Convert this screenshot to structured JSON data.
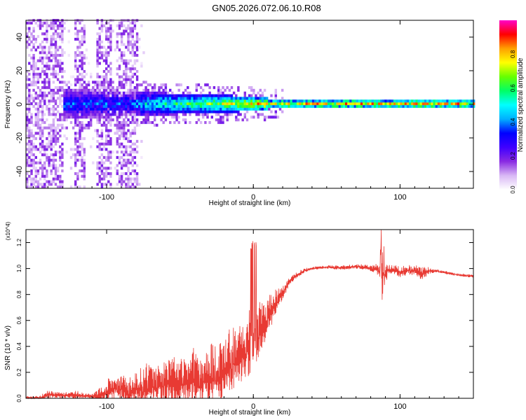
{
  "title": "GN05.2026.072.06.10.R08",
  "colors": {
    "snr_line": "#e83a33",
    "frame": "#000000"
  },
  "chart_data": [
    {
      "type": "heatmap",
      "title": "GN05.2026.072.06.10.R08",
      "xlabel": "Height of straight line (km)",
      "ylabel": "Frequency (Hz)",
      "xlim": [
        -155,
        150
      ],
      "ylim": [
        -50,
        50
      ],
      "xticks": [
        -100,
        0,
        100
      ],
      "xtick_labels": [
        "-100",
        "0",
        "100"
      ],
      "yticks": [
        -40,
        -20,
        0,
        20,
        40
      ],
      "ytick_labels": [
        "-40",
        "-20",
        "0",
        "20",
        "40"
      ],
      "colorbar": {
        "label": "Normalized spectral amplitude",
        "range": [
          0,
          1
        ],
        "ticks": [
          0.0,
          0.2,
          0.4,
          0.6,
          0.8
        ],
        "tick_labels": [
          "0.0",
          "0.2",
          "0.4",
          "0.6",
          "0.8"
        ],
        "colormap": [
          "#ffffff",
          "#d9b8f5",
          "#8a2be2",
          "#3f00ff",
          "#0000ff",
          "#00b0ff",
          "#00ffff",
          "#00ff66",
          "#66ff00",
          "#ffff00",
          "#ffa000",
          "#ff0000",
          "#ff00c8"
        ]
      },
      "features": {
        "broadband_columns_km": [
          [
            -155,
            -130
          ],
          [
            -122,
            -115
          ],
          [
            -108,
            -98
          ],
          [
            -94,
            -80
          ]
        ],
        "central_band": {
          "x_range": [
            -130,
            150
          ],
          "center_hz": 0,
          "peak_region_km": [
            0,
            150
          ]
        }
      }
    },
    {
      "type": "line",
      "xlabel": "Height of straight line (km)",
      "ylabel": "SNR (10 * v/v)",
      "scale_label": "(x10^4)",
      "xlim": [
        -155,
        150
      ],
      "ylim": [
        0,
        1.3
      ],
      "xticks": [
        -100,
        0,
        100
      ],
      "xtick_labels": [
        "-100",
        "0",
        "100"
      ],
      "yticks": [
        0.0,
        0.2,
        0.4,
        0.6,
        0.8,
        1.0,
        1.2
      ],
      "ytick_labels": [
        "0.0",
        "0.2",
        "0.4",
        "0.6",
        "0.8",
        "1.0",
        "1.2"
      ],
      "series": [
        {
          "x": [
            -155,
            -145,
            -140,
            -130,
            -125,
            -120,
            -115,
            -110,
            -105,
            -100,
            -95,
            -90,
            -85,
            -80,
            -75,
            -70,
            -65,
            -60,
            -55,
            -50,
            -45,
            -40,
            -35,
            -30,
            -25,
            -20,
            -15,
            -10,
            -5,
            0,
            5,
            10,
            15,
            20,
            25,
            30,
            35,
            40,
            50,
            60,
            70,
            80,
            85,
            88,
            90,
            92,
            95,
            100,
            105,
            110,
            115,
            120,
            125,
            130,
            140,
            150
          ],
          "envelope": [
            0.01,
            0.02,
            0.05,
            0.04,
            0.04,
            0.06,
            0.03,
            0.03,
            0.06,
            0.12,
            0.16,
            0.18,
            0.16,
            0.18,
            0.22,
            0.2,
            0.26,
            0.24,
            0.3,
            0.26,
            0.28,
            0.34,
            0.28,
            0.38,
            0.34,
            0.42,
            0.48,
            0.52,
            0.56,
            0.62,
            0.7,
            0.74,
            0.8,
            0.86,
            0.93,
            0.97,
            1.0,
            1.01,
            1.02,
            1.02,
            1.03,
            1.02,
            1.03,
            1.02,
            1.02,
            1.02,
            1.02,
            1.01,
            1.02,
            1.01,
            1.01,
            1.0,
            0.99,
            0.98,
            0.96,
            0.95
          ],
          "noise": [
            0.01,
            0.04,
            0.05,
            0.04,
            0.04,
            0.08,
            0.03,
            0.03,
            0.1,
            0.16,
            0.18,
            0.2,
            0.24,
            0.22,
            0.3,
            0.26,
            0.3,
            0.28,
            0.34,
            0.32,
            0.34,
            0.4,
            0.34,
            0.42,
            0.4,
            0.42,
            0.44,
            0.44,
            0.42,
            0.4,
            0.34,
            0.26,
            0.16,
            0.1,
            0.05,
            0.04,
            0.03,
            0.02,
            0.02,
            0.03,
            0.03,
            0.04,
            0.08,
            0.12,
            0.16,
            0.06,
            0.06,
            0.08,
            0.07,
            0.06,
            0.1,
            0.04,
            0.02,
            0.02,
            0.02,
            0.02
          ]
        }
      ]
    }
  ]
}
